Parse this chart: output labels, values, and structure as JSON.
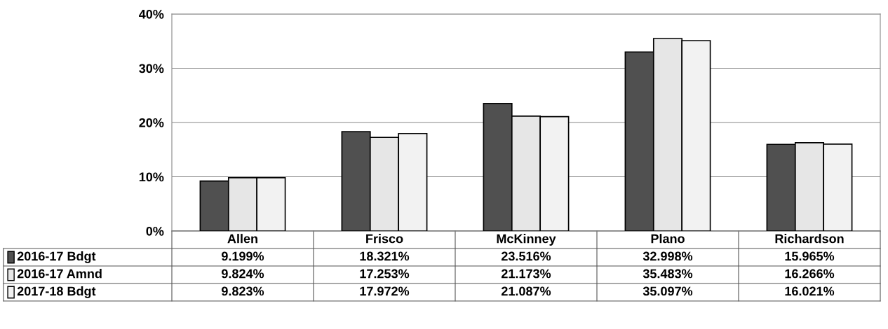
{
  "chart_data": {
    "type": "bar",
    "categories": [
      "Allen",
      "Frisco",
      "McKinney",
      "Plano",
      "Richardson"
    ],
    "series": [
      {
        "name": "2016-17 Bdgt",
        "color": "#505050",
        "values": [
          9.199,
          18.321,
          23.516,
          32.998,
          15.965
        ],
        "value_labels": [
          "9.199%",
          "18.321%",
          "23.516%",
          "32.998%",
          "15.965%"
        ]
      },
      {
        "name": "2016-17 Amnd",
        "color": "#e6e6e6",
        "values": [
          9.824,
          17.253,
          21.173,
          35.483,
          16.266
        ],
        "value_labels": [
          "9.824%",
          "17.253%",
          "21.173%",
          "35.483%",
          "16.266%"
        ]
      },
      {
        "name": "2017-18 Bdgt",
        "color": "#f2f2f2",
        "values": [
          9.823,
          17.972,
          21.087,
          35.097,
          16.021
        ],
        "value_labels": [
          "9.823%",
          "17.972%",
          "21.087%",
          "35.097%",
          "16.021%"
        ]
      }
    ],
    "ylim": [
      0,
      40
    ],
    "yticks": [
      {
        "value": 0,
        "label": "0%"
      },
      {
        "value": 10,
        "label": "10%"
      },
      {
        "value": 20,
        "label": "20%"
      },
      {
        "value": 30,
        "label": "30%"
      },
      {
        "value": 40,
        "label": "40%"
      }
    ],
    "grid": "y",
    "legend": "bottom left"
  }
}
